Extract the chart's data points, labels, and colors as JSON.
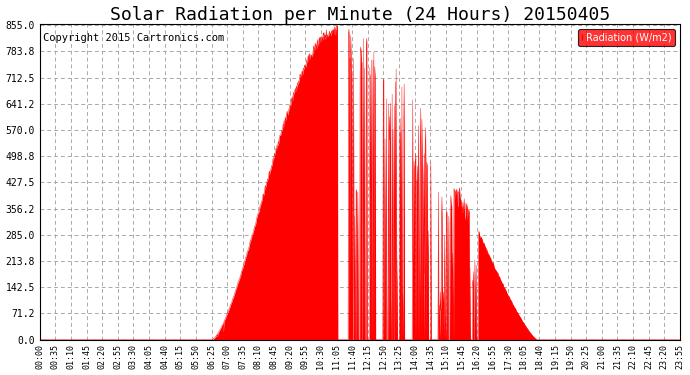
{
  "title": "Solar Radiation per Minute (24 Hours) 20150405",
  "copyright_text": "Copyright 2015 Cartronics.com",
  "legend_label": "Radiation (W/m2)",
  "yticks": [
    0.0,
    71.2,
    142.5,
    213.8,
    285.0,
    356.2,
    427.5,
    498.8,
    570.0,
    641.2,
    712.5,
    783.8,
    855.0
  ],
  "ymax": 855.0,
  "ymin": 0.0,
  "fill_color": "#ff0000",
  "line_color": "#ff0000",
  "bg_color": "#ffffff",
  "grid_color": "#aaaaaa",
  "dashed_zero_color": "#ff0000",
  "title_fontsize": 13,
  "copyright_fontsize": 7.5,
  "xtick_labels": [
    "00:00",
    "00:35",
    "01:10",
    "01:45",
    "02:20",
    "02:55",
    "03:30",
    "04:05",
    "04:40",
    "05:15",
    "05:50",
    "06:25",
    "07:00",
    "07:35",
    "08:10",
    "08:45",
    "09:20",
    "09:55",
    "10:30",
    "11:05",
    "11:40",
    "12:15",
    "12:50",
    "13:25",
    "14:00",
    "14:35",
    "15:10",
    "15:45",
    "16:20",
    "16:55",
    "17:30",
    "18:05",
    "18:40",
    "19:15",
    "19:50",
    "20:25",
    "21:00",
    "21:35",
    "22:10",
    "22:45",
    "23:20",
    "23:55"
  ],
  "num_points": 1440,
  "sunrise_min": 387,
  "sunset_min": 1118,
  "peak_min": 668,
  "peak_val": 855.0
}
